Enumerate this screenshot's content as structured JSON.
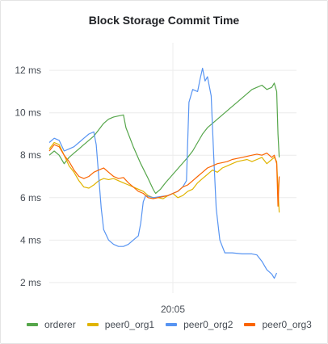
{
  "panel": {
    "title": "Block Storage Commit Time"
  },
  "chart_data": {
    "type": "line",
    "title": "Block Storage Commit Time",
    "xlabel": "",
    "ylabel": "",
    "x_tick_label": "20:05",
    "x_tick_position": 0.5,
    "y_ticks": [
      {
        "value": 2,
        "label": "2 ms"
      },
      {
        "value": 4,
        "label": "4 ms"
      },
      {
        "value": 6,
        "label": "6 ms"
      },
      {
        "value": 8,
        "label": "8 ms"
      },
      {
        "value": 10,
        "label": "10 ms"
      },
      {
        "value": 12,
        "label": "12 ms"
      }
    ],
    "ylim": [
      1.5,
      13.3
    ],
    "grid": true,
    "legend_position": "bottom",
    "series": [
      {
        "name": "orderer",
        "color": "#56a64b",
        "points": [
          [
            0.0,
            8.0
          ],
          [
            0.02,
            8.2
          ],
          [
            0.04,
            8.0
          ],
          [
            0.06,
            7.6
          ],
          [
            0.08,
            7.9
          ],
          [
            0.1,
            8.1
          ],
          [
            0.12,
            8.3
          ],
          [
            0.14,
            8.5
          ],
          [
            0.16,
            8.7
          ],
          [
            0.18,
            8.9
          ],
          [
            0.2,
            9.2
          ],
          [
            0.22,
            9.5
          ],
          [
            0.24,
            9.7
          ],
          [
            0.26,
            9.8
          ],
          [
            0.28,
            9.85
          ],
          [
            0.3,
            9.9
          ],
          [
            0.31,
            9.3
          ],
          [
            0.34,
            8.4
          ],
          [
            0.37,
            7.6
          ],
          [
            0.4,
            6.9
          ],
          [
            0.42,
            6.4
          ],
          [
            0.43,
            6.2
          ],
          [
            0.45,
            6.4
          ],
          [
            0.47,
            6.7
          ],
          [
            0.5,
            7.1
          ],
          [
            0.53,
            7.5
          ],
          [
            0.56,
            7.9
          ],
          [
            0.58,
            8.2
          ],
          [
            0.6,
            8.6
          ],
          [
            0.62,
            9.0
          ],
          [
            0.64,
            9.3
          ],
          [
            0.66,
            9.5
          ],
          [
            0.68,
            9.7
          ],
          [
            0.7,
            9.9
          ],
          [
            0.72,
            10.1
          ],
          [
            0.74,
            10.3
          ],
          [
            0.76,
            10.5
          ],
          [
            0.78,
            10.7
          ],
          [
            0.8,
            10.9
          ],
          [
            0.82,
            11.1
          ],
          [
            0.84,
            11.2
          ],
          [
            0.86,
            11.3
          ],
          [
            0.88,
            11.1
          ],
          [
            0.9,
            11.2
          ],
          [
            0.91,
            11.4
          ],
          [
            0.92,
            11.0
          ],
          [
            0.925,
            9.0
          ],
          [
            0.93,
            7.9
          ]
        ]
      },
      {
        "name": "peer0_org1",
        "color": "#e0b400",
        "points": [
          [
            0.0,
            8.3
          ],
          [
            0.02,
            8.6
          ],
          [
            0.04,
            8.5
          ],
          [
            0.06,
            8.0
          ],
          [
            0.08,
            7.5
          ],
          [
            0.1,
            7.2
          ],
          [
            0.12,
            6.8
          ],
          [
            0.14,
            6.5
          ],
          [
            0.16,
            6.45
          ],
          [
            0.18,
            6.6
          ],
          [
            0.2,
            6.8
          ],
          [
            0.22,
            6.9
          ],
          [
            0.24,
            6.85
          ],
          [
            0.26,
            6.9
          ],
          [
            0.28,
            6.8
          ],
          [
            0.3,
            6.7
          ],
          [
            0.32,
            6.6
          ],
          [
            0.34,
            6.5
          ],
          [
            0.36,
            6.4
          ],
          [
            0.38,
            6.3
          ],
          [
            0.4,
            6.1
          ],
          [
            0.42,
            6.0
          ],
          [
            0.44,
            6.0
          ],
          [
            0.46,
            5.95
          ],
          [
            0.48,
            6.1
          ],
          [
            0.5,
            6.2
          ],
          [
            0.52,
            6.0
          ],
          [
            0.54,
            6.1
          ],
          [
            0.56,
            6.3
          ],
          [
            0.58,
            6.4
          ],
          [
            0.6,
            6.7
          ],
          [
            0.62,
            6.9
          ],
          [
            0.64,
            7.1
          ],
          [
            0.66,
            7.3
          ],
          [
            0.68,
            7.2
          ],
          [
            0.7,
            7.4
          ],
          [
            0.72,
            7.5
          ],
          [
            0.74,
            7.6
          ],
          [
            0.76,
            7.7
          ],
          [
            0.78,
            7.75
          ],
          [
            0.8,
            7.8
          ],
          [
            0.82,
            7.7
          ],
          [
            0.84,
            7.8
          ],
          [
            0.86,
            7.9
          ],
          [
            0.88,
            7.6
          ],
          [
            0.9,
            7.8
          ],
          [
            0.91,
            7.9
          ],
          [
            0.92,
            7.7
          ],
          [
            0.93,
            5.3
          ]
        ]
      },
      {
        "name": "peer0_org2",
        "color": "#5794f2",
        "points": [
          [
            0.0,
            8.6
          ],
          [
            0.02,
            8.8
          ],
          [
            0.04,
            8.7
          ],
          [
            0.06,
            8.2
          ],
          [
            0.08,
            8.3
          ],
          [
            0.1,
            8.4
          ],
          [
            0.12,
            8.6
          ],
          [
            0.14,
            8.8
          ],
          [
            0.16,
            9.0
          ],
          [
            0.18,
            9.1
          ],
          [
            0.19,
            8.5
          ],
          [
            0.2,
            7.0
          ],
          [
            0.21,
            5.5
          ],
          [
            0.22,
            4.5
          ],
          [
            0.24,
            4.0
          ],
          [
            0.26,
            3.8
          ],
          [
            0.28,
            3.7
          ],
          [
            0.3,
            3.7
          ],
          [
            0.32,
            3.8
          ],
          [
            0.34,
            4.0
          ],
          [
            0.36,
            4.2
          ],
          [
            0.37,
            4.8
          ],
          [
            0.38,
            5.8
          ],
          [
            0.39,
            6.1
          ],
          [
            0.42,
            6.0
          ],
          [
            0.45,
            6.05
          ],
          [
            0.48,
            6.1
          ],
          [
            0.5,
            6.2
          ],
          [
            0.52,
            6.3
          ],
          [
            0.54,
            6.5
          ],
          [
            0.555,
            6.8
          ],
          [
            0.565,
            10.5
          ],
          [
            0.58,
            11.1
          ],
          [
            0.6,
            11.0
          ],
          [
            0.61,
            11.6
          ],
          [
            0.62,
            12.1
          ],
          [
            0.63,
            11.5
          ],
          [
            0.64,
            11.7
          ],
          [
            0.655,
            10.8
          ],
          [
            0.665,
            8.0
          ],
          [
            0.675,
            5.5
          ],
          [
            0.69,
            4.0
          ],
          [
            0.71,
            3.4
          ],
          [
            0.74,
            3.4
          ],
          [
            0.78,
            3.35
          ],
          [
            0.82,
            3.35
          ],
          [
            0.84,
            3.3
          ],
          [
            0.86,
            3.0
          ],
          [
            0.88,
            2.6
          ],
          [
            0.9,
            2.4
          ],
          [
            0.91,
            2.2
          ],
          [
            0.92,
            2.45
          ]
        ]
      },
      {
        "name": "peer0_org3",
        "color": "#fa6400",
        "points": [
          [
            0.0,
            8.2
          ],
          [
            0.02,
            8.5
          ],
          [
            0.04,
            8.4
          ],
          [
            0.06,
            8.0
          ],
          [
            0.08,
            7.7
          ],
          [
            0.1,
            7.3
          ],
          [
            0.12,
            7.0
          ],
          [
            0.14,
            6.9
          ],
          [
            0.16,
            7.0
          ],
          [
            0.18,
            7.2
          ],
          [
            0.2,
            7.3
          ],
          [
            0.22,
            7.4
          ],
          [
            0.24,
            7.2
          ],
          [
            0.26,
            7.0
          ],
          [
            0.28,
            6.9
          ],
          [
            0.3,
            6.95
          ],
          [
            0.32,
            6.7
          ],
          [
            0.34,
            6.5
          ],
          [
            0.36,
            6.3
          ],
          [
            0.38,
            6.2
          ],
          [
            0.4,
            6.0
          ],
          [
            0.42,
            5.95
          ],
          [
            0.44,
            6.0
          ],
          [
            0.46,
            6.05
          ],
          [
            0.48,
            6.1
          ],
          [
            0.5,
            6.2
          ],
          [
            0.52,
            6.3
          ],
          [
            0.54,
            6.5
          ],
          [
            0.56,
            6.6
          ],
          [
            0.58,
            6.8
          ],
          [
            0.6,
            7.0
          ],
          [
            0.62,
            7.2
          ],
          [
            0.64,
            7.4
          ],
          [
            0.66,
            7.5
          ],
          [
            0.68,
            7.6
          ],
          [
            0.7,
            7.65
          ],
          [
            0.72,
            7.7
          ],
          [
            0.74,
            7.8
          ],
          [
            0.76,
            7.85
          ],
          [
            0.78,
            7.9
          ],
          [
            0.8,
            7.95
          ],
          [
            0.82,
            8.0
          ],
          [
            0.84,
            8.05
          ],
          [
            0.86,
            8.0
          ],
          [
            0.88,
            8.1
          ],
          [
            0.9,
            7.9
          ],
          [
            0.91,
            8.0
          ],
          [
            0.92,
            7.6
          ],
          [
            0.925,
            5.6
          ],
          [
            0.93,
            7.0
          ]
        ]
      }
    ]
  }
}
